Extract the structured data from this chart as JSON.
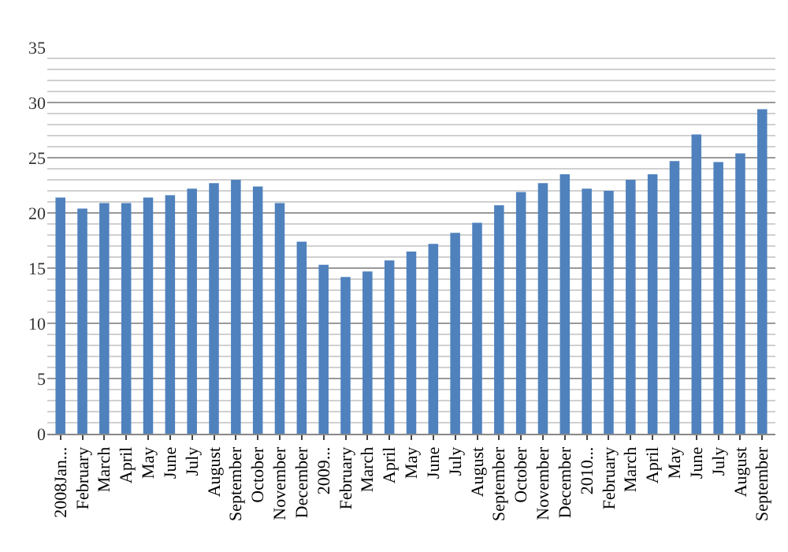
{
  "chart_data": {
    "type": "bar",
    "categories": [
      "2008Jan...",
      "February",
      "March",
      "April",
      "May",
      "June",
      "July",
      "August",
      "September",
      "October",
      "November",
      "December",
      "2009...",
      "February",
      "March",
      "April",
      "May",
      "June",
      "July",
      "August",
      "September",
      "October",
      "November",
      "December",
      "2010...",
      "February",
      "March",
      "April",
      "May",
      "June",
      "July",
      "August",
      "September"
    ],
    "values": [
      21.4,
      20.4,
      20.9,
      20.9,
      21.4,
      21.6,
      22.2,
      22.7,
      23.0,
      22.4,
      20.9,
      17.4,
      15.3,
      14.2,
      14.7,
      15.7,
      16.5,
      17.2,
      18.2,
      19.1,
      20.7,
      21.9,
      22.7,
      23.5,
      22.2,
      22.0,
      23.0,
      23.5,
      24.7,
      27.1,
      24.6,
      25.4,
      29.4
    ],
    "color": "#4f81bd",
    "ylim": [
      0,
      35
    ],
    "yticks": [
      0,
      5,
      10,
      15,
      20,
      25,
      30,
      35
    ],
    "grid": "y"
  }
}
